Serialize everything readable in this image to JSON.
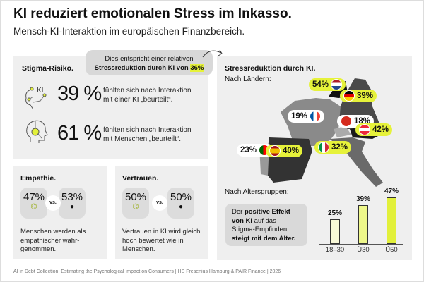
{
  "header": {
    "title": "KI reduziert emotionalen Stress im Inkasso.",
    "subtitle": "Mensch-KI-Interaktion im europäischen Finanzbereich."
  },
  "callout": {
    "line1": "Dies entspricht einer relativen",
    "line2": "Stressreduktion durch KI von ",
    "value": "36%"
  },
  "stigma": {
    "heading": "Stigma-Risiko.",
    "ki_icon_label": "KI",
    "rows": [
      {
        "value": "39 %",
        "text1": "fühlten sich nach Interaktion",
        "text2": "mit einer KI „beurteilt“."
      },
      {
        "value": "61 %",
        "text1": "fühlten sich nach Interaktion",
        "text2": "mit Menschen „beurteilt“."
      }
    ]
  },
  "empathie": {
    "heading": "Empathie.",
    "ki": "47%",
    "vs": "vs.",
    "human": "53%",
    "text": "Menschen werden als empathischer wahr-genommen."
  },
  "vertrauen": {
    "heading": "Vertrauen.",
    "ki": "50%",
    "vs": "vs.",
    "human": "50%",
    "text": "Vertrauen in KI wird gleich hoch bewertet wie in Menschen."
  },
  "map": {
    "heading": "Stressreduktion durch KI.",
    "sub": "Nach Ländern:",
    "countries": [
      {
        "name": "Niederlande",
        "value": "54%"
      },
      {
        "name": "Deutschland",
        "value": "39%"
      },
      {
        "name": "Frankreich",
        "value": "19%"
      },
      {
        "name": "Schweiz",
        "value": "18%"
      },
      {
        "name": "Österreich",
        "value": "42%"
      },
      {
        "name": "Portugal",
        "value": "23%"
      },
      {
        "name": "Spanien",
        "value": "40%"
      },
      {
        "name": "Italien",
        "value": "32%"
      }
    ]
  },
  "age": {
    "sub": "Nach Altersgruppen:",
    "note_pre": "Der ",
    "note_b1": "positive Effekt von KI",
    "note_mid": " auf das Stigma-Empfinden ",
    "note_b2": "steigt mit dem Alter."
  },
  "chart_data": {
    "type": "bar",
    "title": "Nach Altersgruppen:",
    "categories": [
      "18–30",
      "Ü30",
      "Ü50"
    ],
    "values": [
      25,
      39,
      47
    ],
    "labels": [
      "25%",
      "39%",
      "47%"
    ],
    "ylim": [
      0,
      50
    ],
    "colors": [
      "#f8f9d8",
      "#eef78a",
      "#e2f03a"
    ]
  },
  "footer": "AI in Debt Collection: Estimating the Psychological Impact on Consumers | HS Fresenius Hamburg & PAIR Finance | 2026"
}
